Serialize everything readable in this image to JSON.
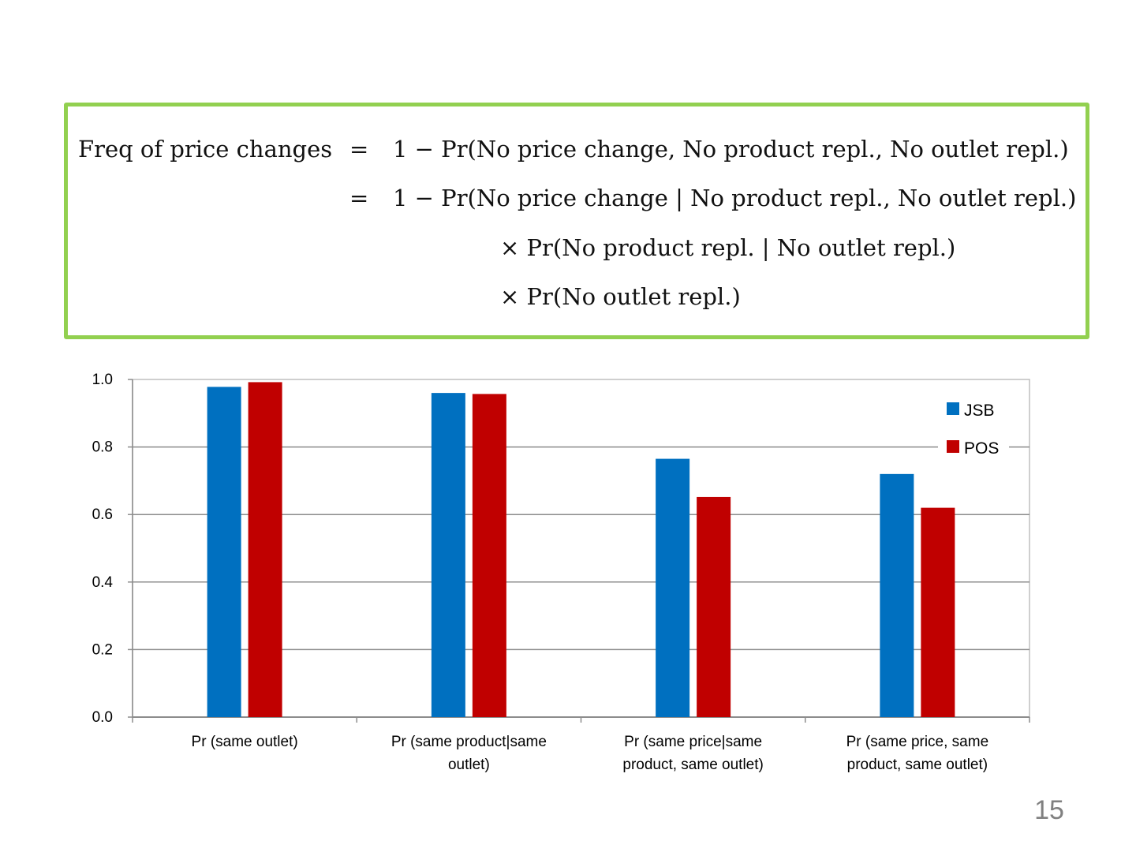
{
  "formula": {
    "line1_lhs": "Freq of price changes",
    "line1_eq": "=",
    "line1_rhs": "1 − Pr(No price change, No product repl., No outlet repl.)",
    "line2_eq": "=",
    "line2_rhs": "1 − Pr(No price change | No product repl., No outlet repl.)",
    "line3": "× Pr(No product repl. | No outlet repl.)",
    "line4": "× Pr(No outlet repl.)"
  },
  "chart_data": {
    "type": "bar",
    "categories": [
      [
        "Pr (same outlet)"
      ],
      [
        "Pr (same product|same",
        "outlet)"
      ],
      [
        "Pr (same price|same",
        "product, same outlet)"
      ],
      [
        "Pr (same price, same",
        "product, same outlet)"
      ]
    ],
    "series": [
      {
        "name": "JSB",
        "color": "#0070c0",
        "values": [
          0.978,
          0.96,
          0.765,
          0.72
        ]
      },
      {
        "name": "POS",
        "color": "#c00000",
        "values": [
          0.992,
          0.957,
          0.652,
          0.62
        ]
      }
    ],
    "ylim": [
      0,
      1.0
    ],
    "yticks": [
      "0.0",
      "0.2",
      "0.4",
      "0.6",
      "0.8",
      "1.0"
    ],
    "gridlines": true,
    "legend_position": "right"
  },
  "page_number": "15"
}
